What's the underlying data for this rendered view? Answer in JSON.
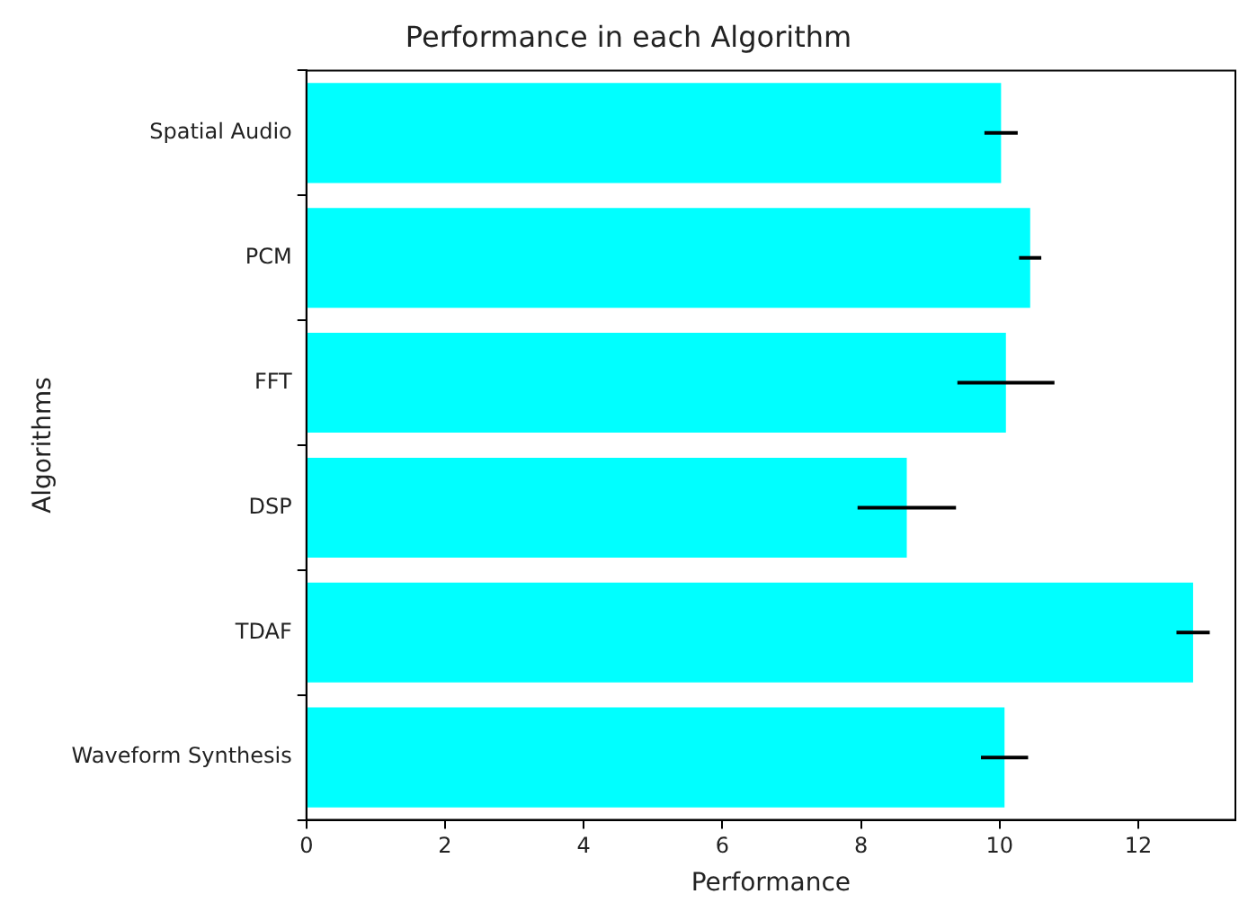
{
  "chart_data": {
    "type": "bar",
    "orientation": "horizontal",
    "title": "Performance in each Algorithm",
    "xlabel": "Performance",
    "ylabel": "Algorithms",
    "categories": [
      "Spatial Audio",
      "PCM",
      "FFT",
      "DSP",
      "TDAF",
      "Waveform Synthesis"
    ],
    "values": [
      10.02,
      10.44,
      10.09,
      8.66,
      12.79,
      10.07
    ],
    "errors": [
      0.24,
      0.16,
      0.7,
      0.71,
      0.24,
      0.34
    ],
    "color": "#00ffff",
    "xlim": [
      0,
      13.4
    ],
    "xticks": [
      0,
      2,
      4,
      6,
      8,
      10,
      12
    ],
    "grid": false,
    "legend": false
  }
}
